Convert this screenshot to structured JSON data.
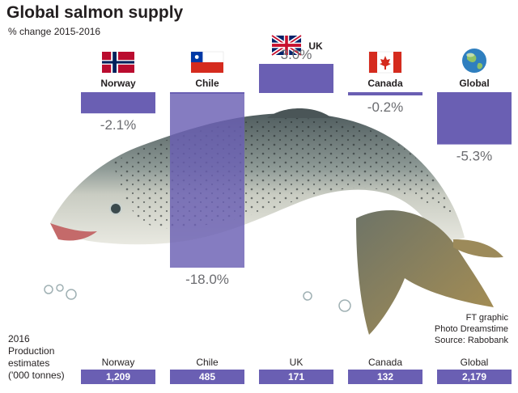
{
  "header": {
    "title": "Global salmon supply",
    "subtitle": "% change 2015-2016"
  },
  "production": {
    "label_lines": [
      "2016",
      "Production",
      "estimates",
      "('000 tonnes)"
    ]
  },
  "credits": {
    "lines": [
      "FT graphic",
      "Photo Dreamstime",
      "Source: Rabobank"
    ]
  },
  "colors": {
    "bar": "#6a5fb3",
    "bar_top_fill": "#6a5fb3",
    "percent_text": "#6b6c70",
    "fish_back": "#5d6a6c",
    "fish_belly": "#dfe0d6",
    "tail": "#8b7a46"
  },
  "flags": [
    {
      "country": "Norway",
      "icon": "norway-flag-icon"
    },
    {
      "country": "Chile",
      "icon": "chile-flag-icon"
    },
    {
      "country": "UK",
      "icon": "uk-flag-icon"
    },
    {
      "country": "Canada",
      "icon": "canada-flag-icon"
    },
    {
      "country": "Global",
      "icon": "globe-icon"
    }
  ],
  "chart_data": {
    "type": "bar",
    "categories": [
      "Norway",
      "Chile",
      "UK",
      "Canada",
      "Global"
    ],
    "values": [
      -2.1,
      -18.0,
      3.0,
      -0.2,
      -5.3
    ],
    "value_labels": [
      "-2.1%",
      "-18.0%",
      "3.0%",
      "-0.2%",
      "-5.3%"
    ],
    "unit": "%",
    "production_estimates": [
      1209,
      485,
      171,
      132,
      2179
    ],
    "production_labels": [
      "1,209",
      "485",
      "171",
      "132",
      "2,179"
    ],
    "ylim": [
      -18.0,
      3.0
    ],
    "grid": false,
    "legend": "none"
  }
}
